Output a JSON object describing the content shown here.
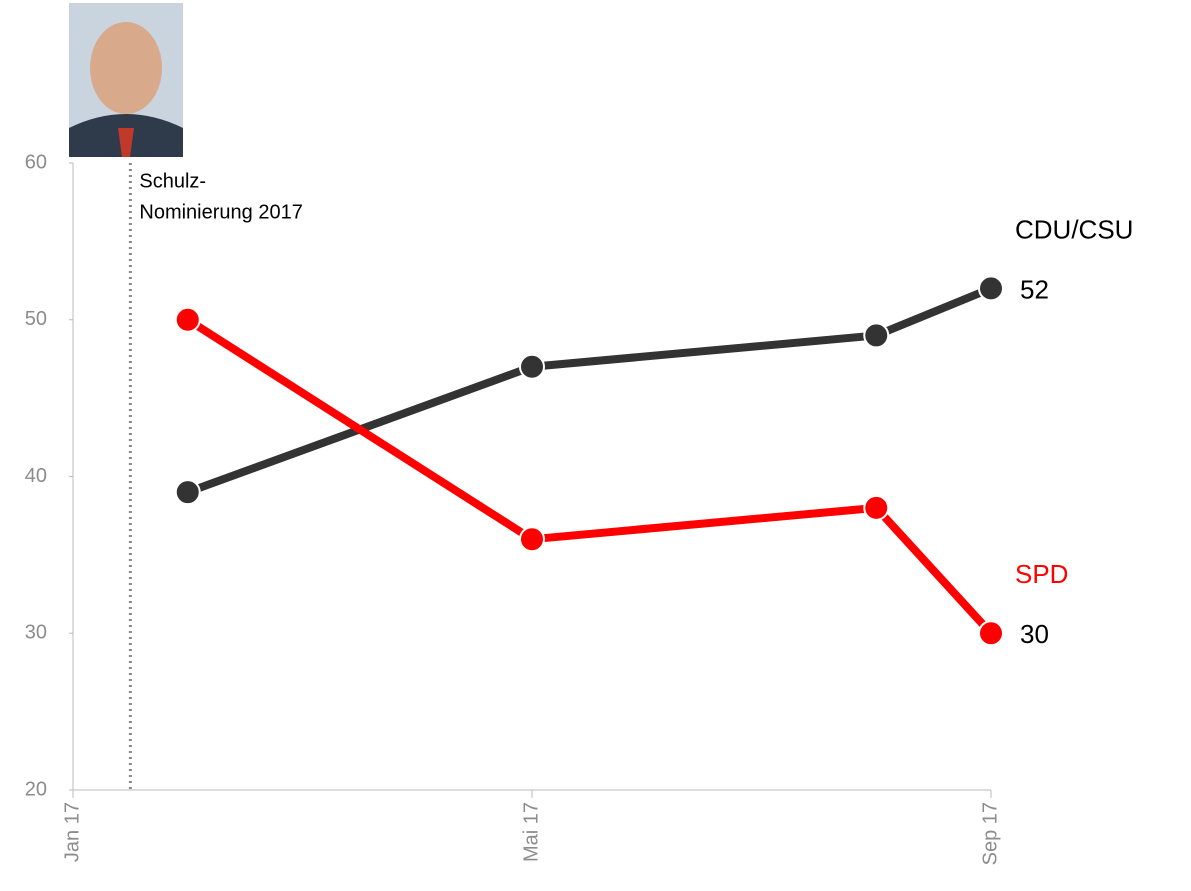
{
  "chart_data": {
    "type": "line",
    "x": [
      "2017-02",
      "2017-05",
      "2017-08",
      "2017-09"
    ],
    "series": [
      {
        "name": "CDU/CSU",
        "color": "#333333",
        "values": [
          39,
          47,
          49,
          52
        ]
      },
      {
        "name": "SPD",
        "color": "#ff0000",
        "values": [
          50,
          36,
          38,
          30
        ]
      }
    ],
    "xlim": [
      "2017-01",
      "2017-09"
    ],
    "xticks": [
      {
        "value": "2017-01",
        "label": "Jan 17"
      },
      {
        "value": "2017-05",
        "label": "Mai 17"
      },
      {
        "value": "2017-09",
        "label": "Sep 17"
      }
    ],
    "ylim": [
      20,
      60
    ],
    "yticks": [
      20,
      30,
      40,
      50,
      60
    ],
    "grid": false,
    "annotation": {
      "x": "2017-01",
      "lines": [
        "Schulz-",
        "Nominierung 2017"
      ]
    }
  }
}
